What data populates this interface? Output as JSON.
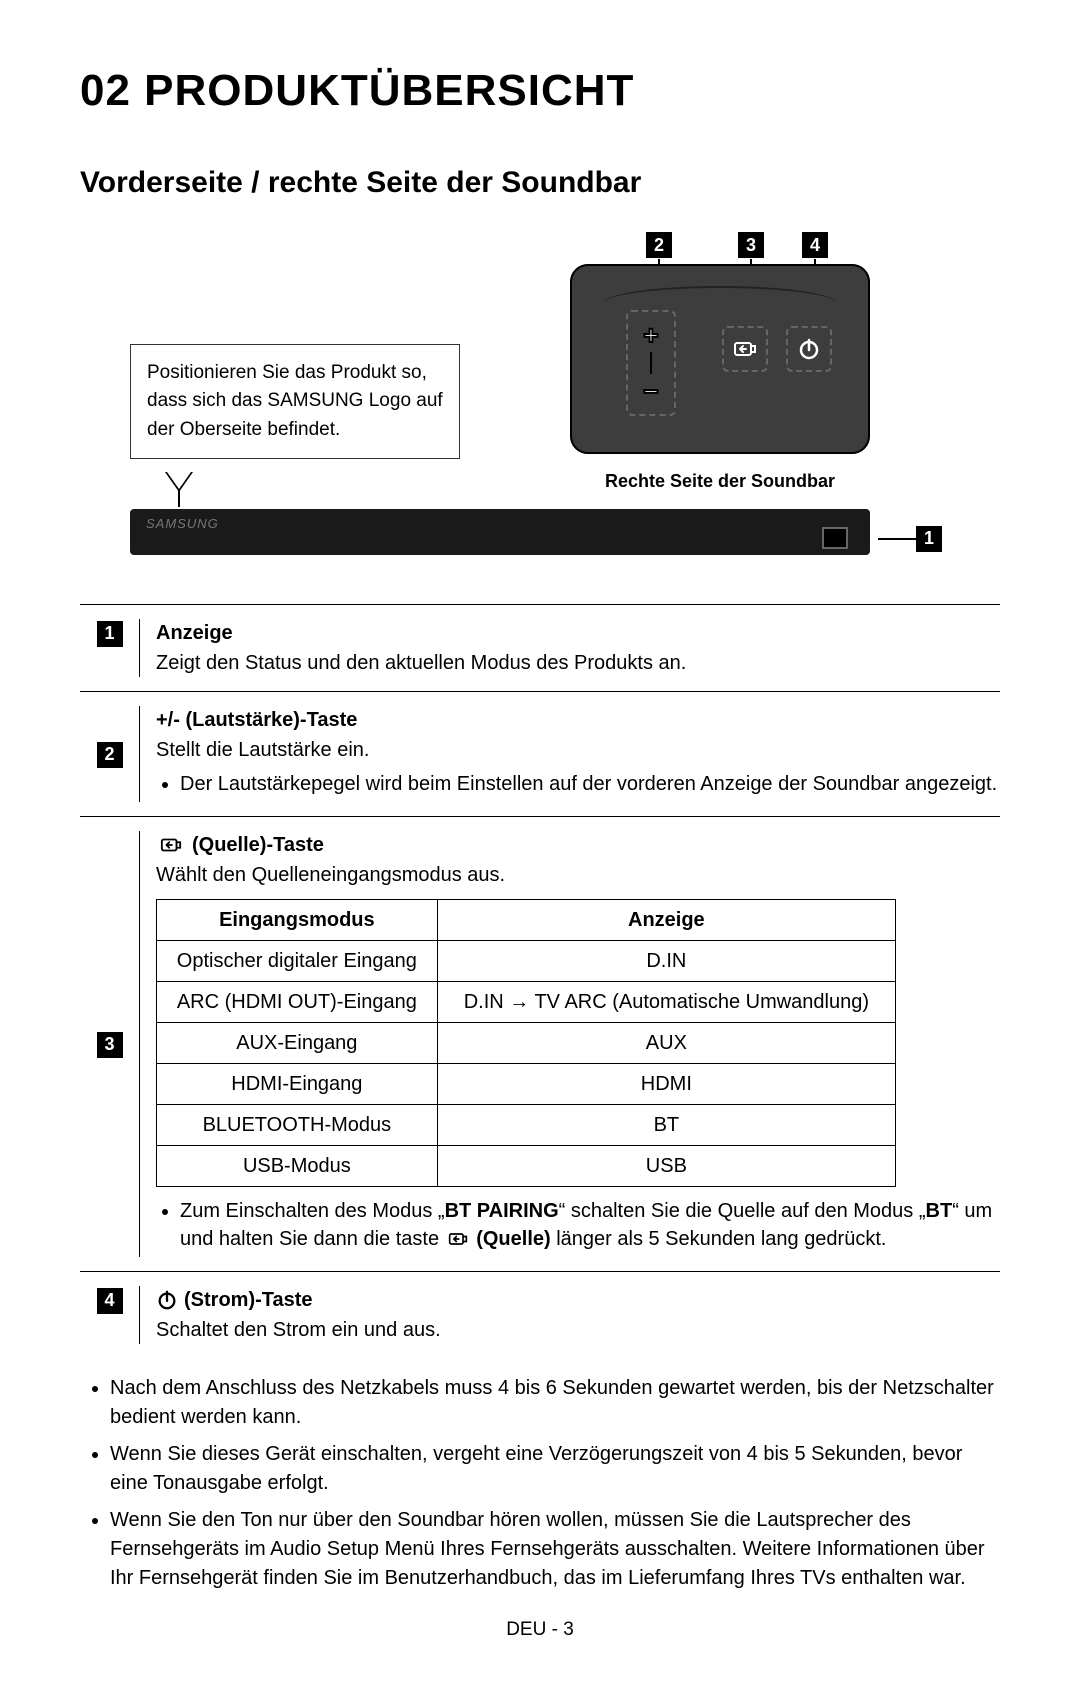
{
  "title": "02 PRODUKTÜBERSICHT",
  "subtitle": "Vorderseite / rechte Seite der Soundbar",
  "note_box": "Positionieren Sie das Produkt so, dass sich das SAMSUNG Logo auf der Oberseite befindet.",
  "panel_caption": "Rechte Seite der Soundbar",
  "soundbar_logo": "SAMSUNG",
  "callouts": {
    "n1": "1",
    "n2": "2",
    "n3": "3",
    "n4": "4"
  },
  "features": [
    {
      "num": "1",
      "title": "Anzeige",
      "desc": "Zeigt den Status und den aktuellen Modus des Produkts an."
    },
    {
      "num": "2",
      "title": "+/- (Lautstärke)-Taste",
      "desc": "Stellt die Lautstärke ein.",
      "bullets": [
        "Der Lautstärkepegel wird beim Einstellen auf der vorderen Anzeige der Soundbar angezeigt."
      ]
    },
    {
      "num": "3",
      "icon": "source",
      "title": "(Quelle)-Taste",
      "desc": "Wählt den Quelleneingangsmodus aus.",
      "table": {
        "headers": [
          "Eingangsmodus",
          "Anzeige"
        ],
        "rows": [
          [
            "Optischer digitaler Eingang",
            "D.IN"
          ],
          [
            "ARC (HDMI OUT)-Eingang",
            "D.IN → TV ARC (Automatische Umwandlung)"
          ],
          [
            "AUX-Eingang",
            "AUX"
          ],
          [
            "HDMI-Eingang",
            "HDMI"
          ],
          [
            "BLUETOOTH-Modus",
            "BT"
          ],
          [
            "USB-Modus",
            "USB"
          ]
        ]
      },
      "table_note_pre": "Zum Einschalten des Modus „",
      "table_note_b1": "BT PAIRING",
      "table_note_mid": "“ schalten Sie die Quelle auf den Modus „",
      "table_note_b2": "BT",
      "table_note_mid2": "“ um und halten Sie dann die taste ",
      "table_note_b3": "(Quelle)",
      "table_note_post": " länger als 5 Sekunden lang gedrückt."
    },
    {
      "num": "4",
      "icon": "power",
      "title": "(Strom)-Taste",
      "desc": "Schaltet den Strom ein und aus."
    }
  ],
  "bottom_notes": [
    "Nach dem Anschluss des Netzkabels muss 4 bis 6 Sekunden gewartet werden, bis der Netzschalter bedient werden kann.",
    "Wenn Sie dieses Gerät einschalten, vergeht eine Verzögerungszeit von 4 bis 5 Sekunden, bevor eine Tonausgabe erfolgt.",
    "Wenn Sie den Ton nur über den Soundbar hören wollen, müssen Sie die Lautsprecher des Fernsehgeräts im Audio Setup Menü Ihres Fernsehgeräts ausschalten. Weitere Informationen über Ihr Fernsehgerät finden Sie im Benutzerhandbuch, das im Lieferumfang Ihres TVs enthalten war."
  ],
  "footer": "DEU - 3",
  "colors": {
    "text": "#000000",
    "bg": "#ffffff",
    "soundbar": "#1a1a1a",
    "logo": "#777777"
  }
}
